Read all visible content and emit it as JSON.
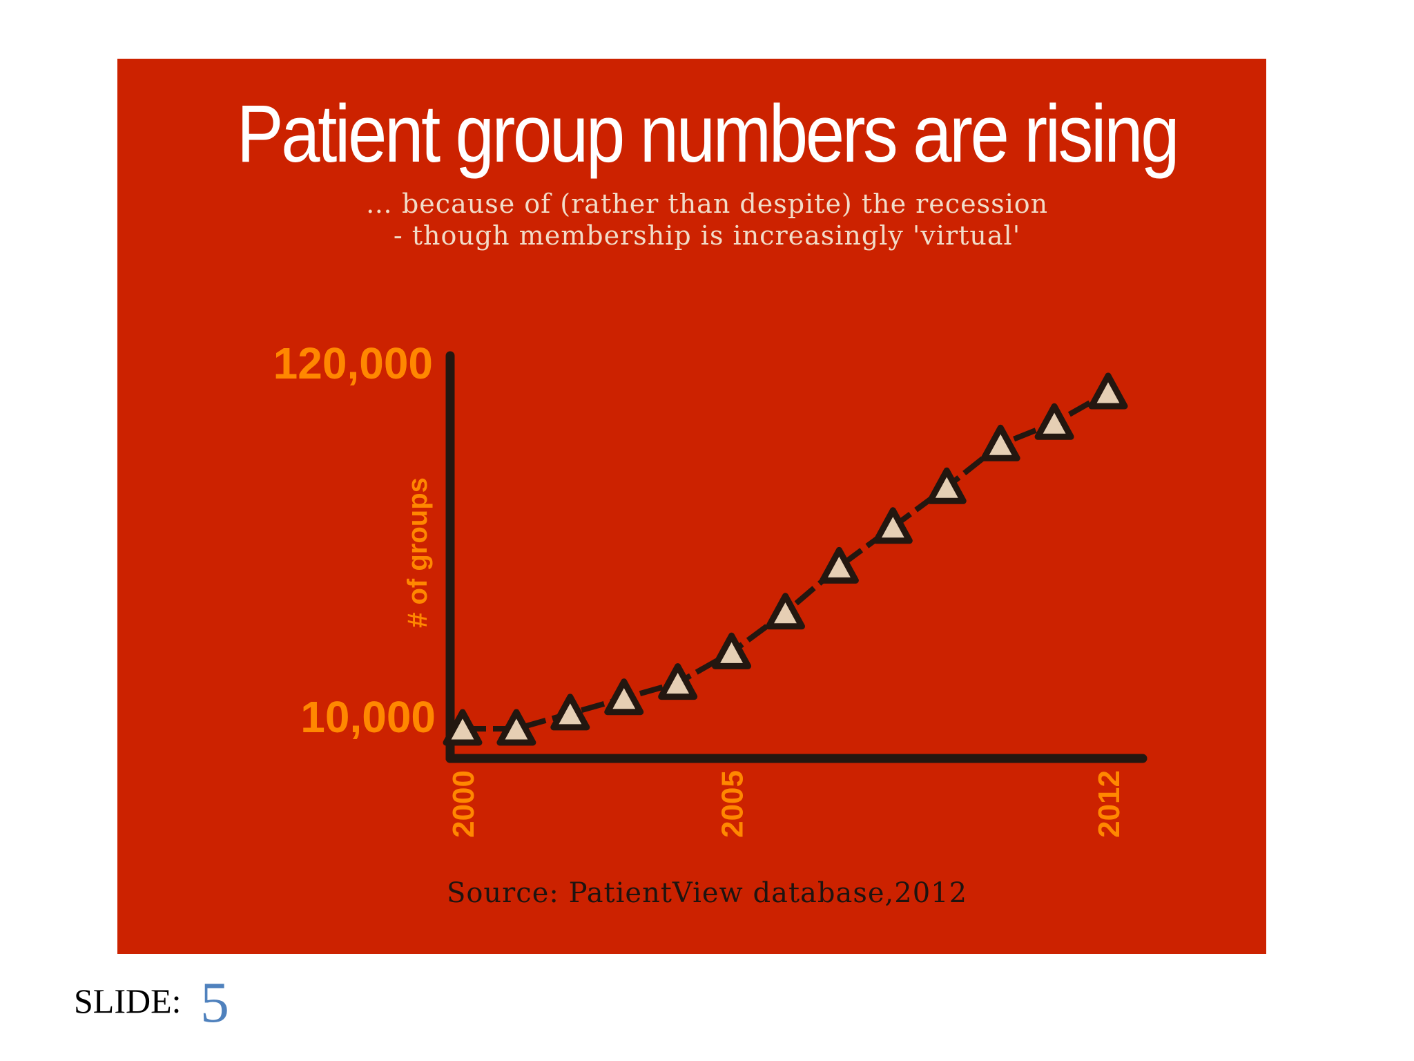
{
  "slide": {
    "label": "SLIDE:",
    "number": "5"
  },
  "colors": {
    "background": "#cc2200",
    "accent": "#ff8800",
    "marker_fill": "#e6cfb4",
    "line": "#231710",
    "title": "#ffffff"
  },
  "chart_data": {
    "type": "line",
    "title": "Patient group numbers are rising",
    "subtitle": [
      "… because of (rather than despite) the recession",
      "- though membership is increasingly 'virtual'"
    ],
    "xlabel": "",
    "ylabel": "# of groups",
    "yticks": [
      "10,000",
      "120,000"
    ],
    "xticks": [
      "2000",
      "2005",
      "2012"
    ],
    "ylim": [
      10000,
      120000
    ],
    "xlim": [
      2000,
      2012
    ],
    "marker": "triangle",
    "grid": false,
    "series": [
      {
        "x": [
          2000,
          2001,
          2002,
          2003,
          2004,
          2005,
          2006,
          2007,
          2008,
          2009,
          2010,
          2011,
          2012
        ],
        "values": [
          10000,
          10000,
          15000,
          20000,
          25000,
          35000,
          48000,
          63000,
          76000,
          89000,
          103000,
          110000,
          120000
        ]
      }
    ],
    "source": "Source: PatientView database,2012"
  }
}
